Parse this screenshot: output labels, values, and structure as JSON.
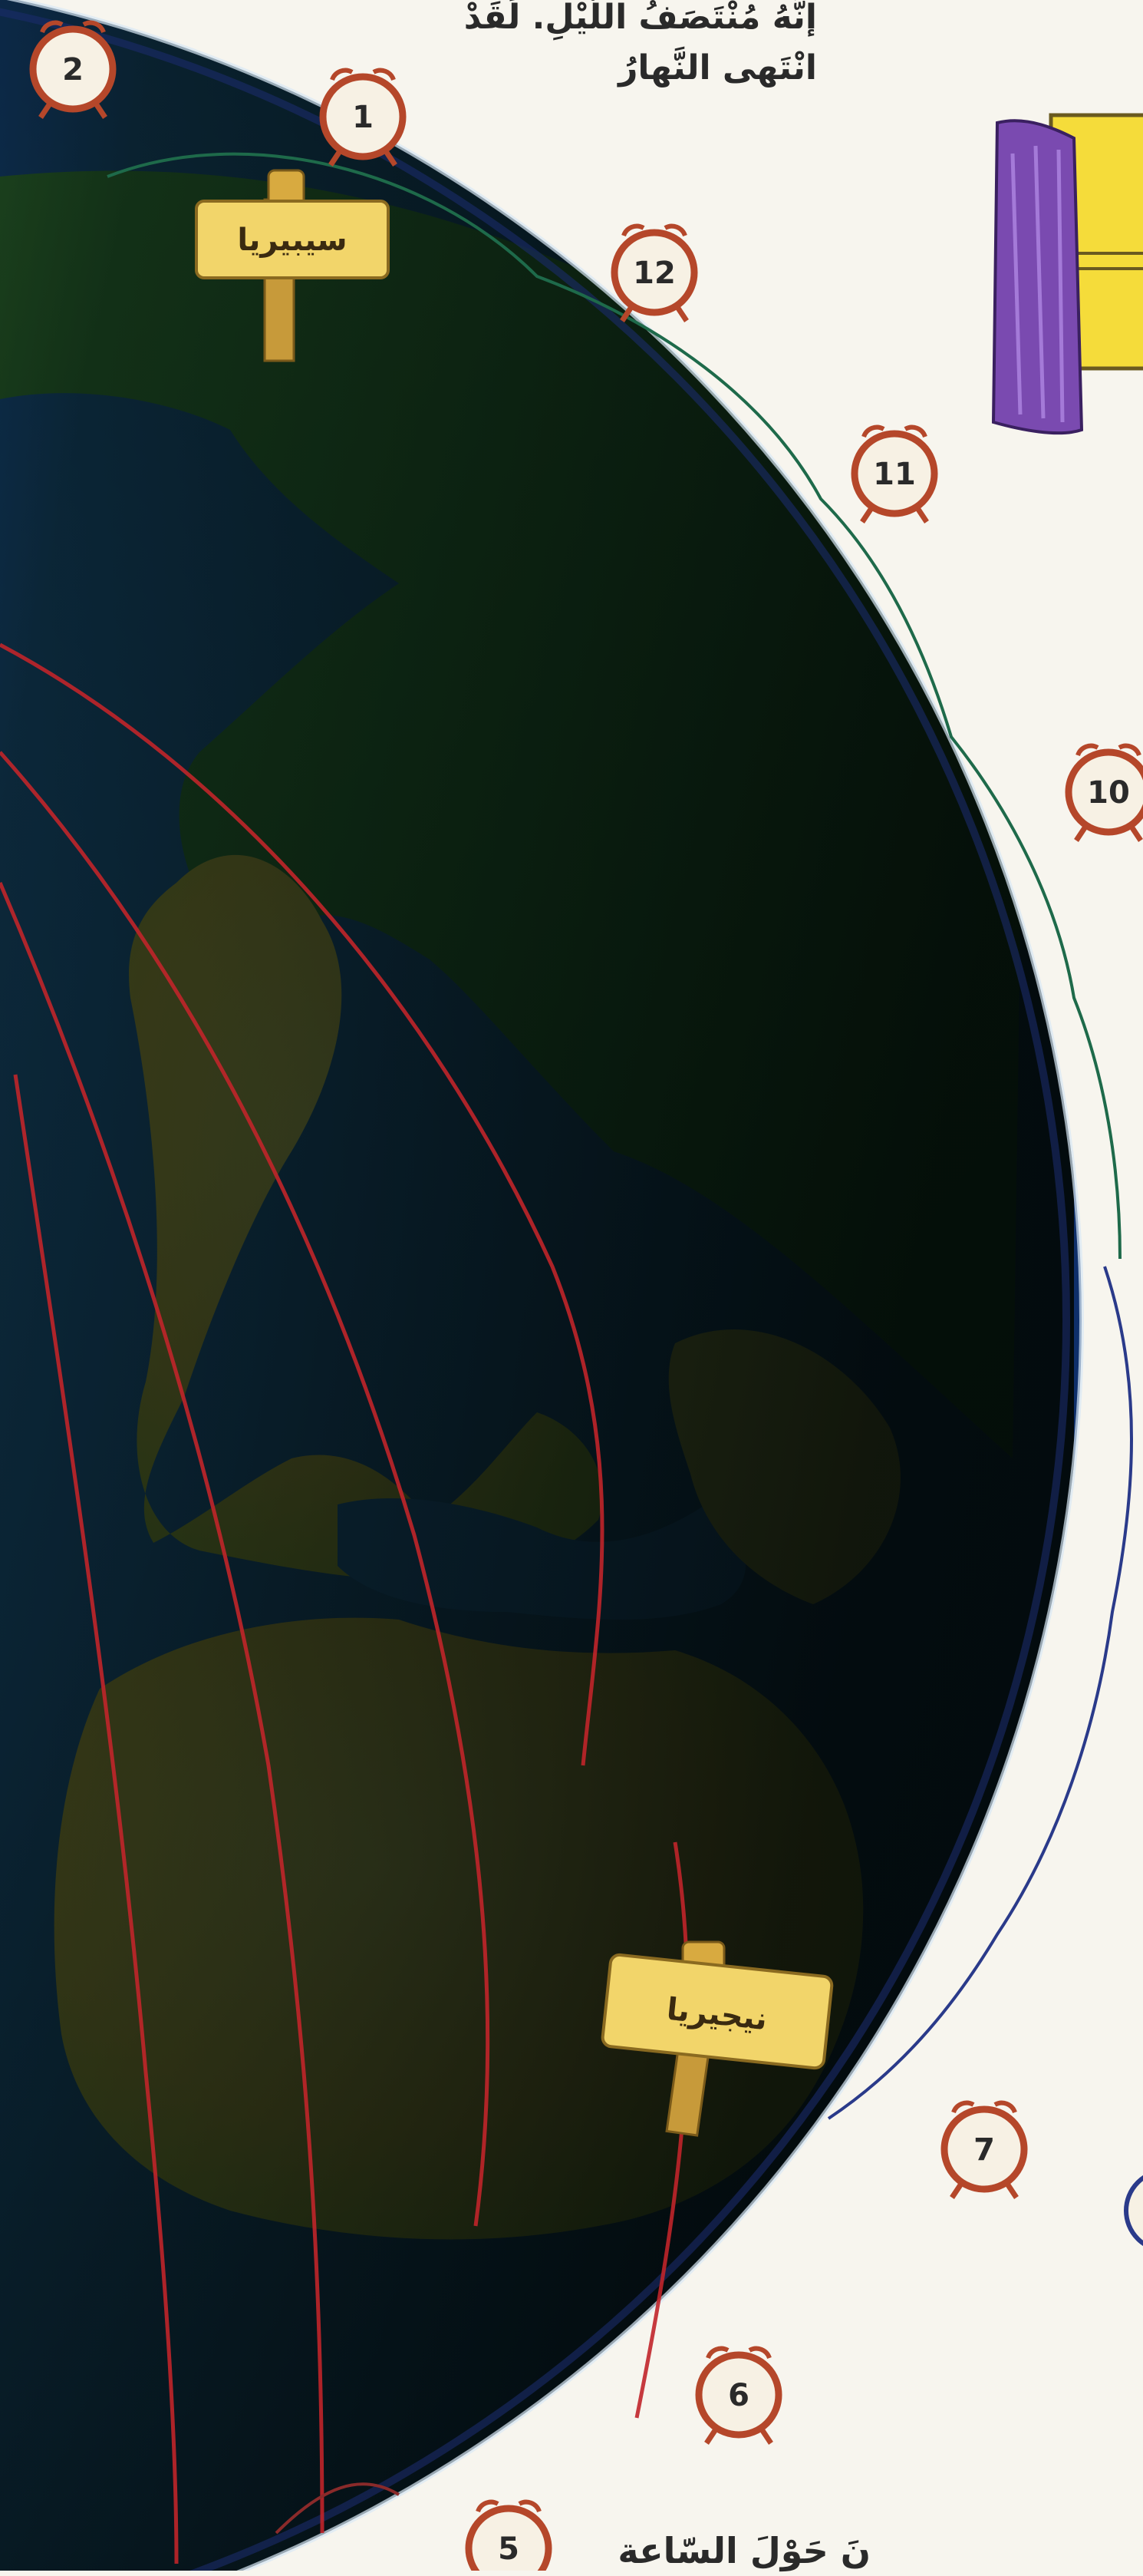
{
  "captions": {
    "top_line1": "إنَّهُ مُنْتَصَفُ اللَّيْلِ. لَقَدْ",
    "top_line2": "انْتَهى النَّهارُ",
    "bottom": "نَ حَوْلَ السّاعة"
  },
  "signs": {
    "siberia": "سيبيريا",
    "nigeria": "نيجيريا"
  },
  "clocks": {
    "c1": "1",
    "c2": "2",
    "c5": "5",
    "c6": "6",
    "c7": "7",
    "c10": "10",
    "c11": "11",
    "c12": "12"
  },
  "colors": {
    "ocean": "#1e5fbf",
    "land": "#e6c64a",
    "night": "#0b1410",
    "clock_ring": "#b5472a",
    "sign": "#f2d56a"
  }
}
